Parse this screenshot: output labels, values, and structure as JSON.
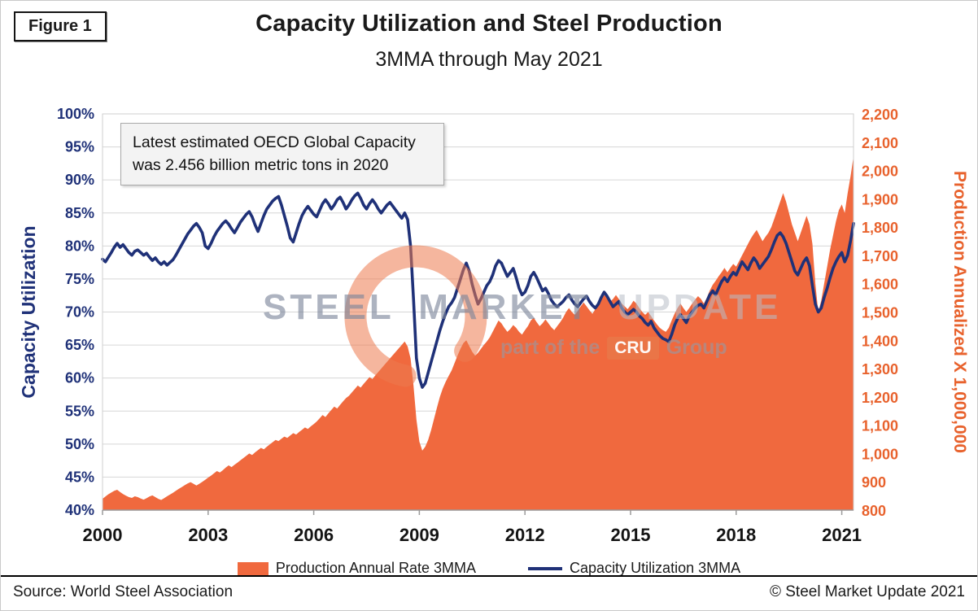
{
  "figure_label": "Figure 1",
  "header": {
    "title": "Capacity Utilization and Steel Production",
    "subtitle": "3MMA through May 2021"
  },
  "annotation": {
    "text": "Latest estimated OECD Global Capacity was 2.456 billion metric tons in 2020"
  },
  "watermark": {
    "brand_steel": "STEEL",
    "brand_market": "MARKET",
    "brand_update": "UPDATE",
    "tagline_prefix": "part of the",
    "tagline_cru": "CRU",
    "tagline_suffix": "Group"
  },
  "legend": [
    {
      "label": "Production Annual Rate 3MMA",
      "swatch": "area",
      "color": "#F0693E"
    },
    {
      "label": "Capacity Utilization 3MMA",
      "swatch": "line",
      "color": "#1F3178"
    }
  ],
  "footer": {
    "source": "Source: World Steel Association",
    "copyright": "© Steel Market Update 2021"
  },
  "chart_data": {
    "type": "area+line",
    "title": "Capacity Utilization and Steel Production",
    "subtitle": "3MMA through May 2021",
    "x_ticks": [
      "2000",
      "2003",
      "2006",
      "2009",
      "2012",
      "2015",
      "2018",
      "2021"
    ],
    "x_start_year": 2000,
    "points_per_year": 12,
    "left_axis": {
      "title": "Capacity Utilization",
      "min": 40,
      "max": 100,
      "step": 5,
      "tick_labels": [
        "100%",
        "95%",
        "90%",
        "85%",
        "80%",
        "75%",
        "70%",
        "65%",
        "60%",
        "55%",
        "50%",
        "45%",
        "40%"
      ],
      "color": "#1F3178"
    },
    "right_axis": {
      "title": "Production Annualized X 1,000,000",
      "min": 800,
      "max": 2200,
      "step": 100,
      "tick_labels": [
        "2,200",
        "2,100",
        "2,000",
        "1,900",
        "1,800",
        "1,700",
        "1,600",
        "1,500",
        "1,400",
        "1,300",
        "1,200",
        "1,100",
        "1,000",
        "900",
        "800"
      ],
      "color": "#E8622D"
    },
    "colors": {
      "navy": "#1F3178",
      "orange_area": "#F0693E",
      "orange_label": "#E8622D",
      "grid": "#D6D6D6",
      "axis_line": "#9b9b9b",
      "x_label": "#141414"
    },
    "series": [
      {
        "name": "Production Annual Rate 3MMA",
        "axis": "right",
        "type": "area",
        "color": "#F0693E",
        "values": [
          840,
          848,
          856,
          862,
          868,
          872,
          864,
          857,
          851,
          846,
          843,
          849,
          846,
          841,
          837,
          842,
          848,
          852,
          846,
          840,
          836,
          842,
          849,
          855,
          861,
          868,
          875,
          881,
          888,
          894,
          899,
          893,
          887,
          893,
          900,
          907,
          915,
          922,
          930,
          938,
          933,
          941,
          950,
          958,
          952,
          960,
          968,
          976,
          984,
          992,
          1000,
          995,
          1004,
          1012,
          1020,
          1015,
          1024,
          1032,
          1040,
          1048,
          1044,
          1052,
          1060,
          1055,
          1064,
          1072,
          1067,
          1076,
          1084,
          1092,
          1087,
          1096,
          1104,
          1113,
          1124,
          1136,
          1129,
          1142,
          1154,
          1166,
          1159,
          1172,
          1184,
          1196,
          1204,
          1216,
          1228,
          1240,
          1233,
          1246,
          1258,
          1270,
          1263,
          1276,
          1288,
          1300,
          1312,
          1324,
          1336,
          1348,
          1360,
          1372,
          1384,
          1396,
          1378,
          1336,
          1240,
          1120,
          1042,
          1010,
          1024,
          1048,
          1082,
          1122,
          1162,
          1200,
          1230,
          1254,
          1274,
          1294,
          1320,
          1346,
          1370,
          1390,
          1400,
          1380,
          1360,
          1346,
          1356,
          1370,
          1384,
          1396,
          1410,
          1430,
          1450,
          1470,
          1460,
          1444,
          1430,
          1440,
          1454,
          1444,
          1430,
          1420,
          1436,
          1450,
          1470,
          1480,
          1464,
          1450,
          1460,
          1474,
          1460,
          1446,
          1436,
          1450,
          1464,
          1480,
          1500,
          1514,
          1500,
          1490,
          1504,
          1520,
          1534,
          1520,
          1506,
          1494,
          1510,
          1526,
          1544,
          1560,
          1550,
          1536,
          1546,
          1560,
          1546,
          1530,
          1520,
          1510,
          1524,
          1540,
          1530,
          1514,
          1500,
          1490,
          1500,
          1486,
          1470,
          1456,
          1444,
          1436,
          1430,
          1444,
          1470,
          1494,
          1514,
          1530,
          1514,
          1500,
          1514,
          1530,
          1544,
          1556,
          1546,
          1530,
          1550,
          1576,
          1596,
          1610,
          1626,
          1640,
          1656,
          1640,
          1656,
          1670,
          1660,
          1680,
          1700,
          1720,
          1740,
          1760,
          1776,
          1790,
          1770,
          1750,
          1766,
          1780,
          1800,
          1830,
          1860,
          1890,
          1920,
          1890,
          1850,
          1810,
          1780,
          1750,
          1780,
          1810,
          1840,
          1810,
          1740,
          1600,
          1500,
          1540,
          1600,
          1660,
          1720,
          1770,
          1820,
          1860,
          1880,
          1850,
          1920,
          1980,
          2050
        ]
      },
      {
        "name": "Capacity Utilization 3MMA",
        "axis": "left",
        "type": "line",
        "color": "#1F3178",
        "values": [
          78.0,
          77.6,
          78.3,
          79.0,
          79.8,
          80.4,
          79.8,
          80.2,
          79.6,
          79.0,
          78.6,
          79.2,
          79.4,
          79.0,
          78.6,
          78.9,
          78.3,
          77.8,
          78.2,
          77.6,
          77.2,
          77.6,
          77.1,
          77.5,
          77.9,
          78.6,
          79.4,
          80.2,
          81.0,
          81.8,
          82.4,
          83.0,
          83.4,
          82.8,
          82.0,
          80.0,
          79.6,
          80.4,
          81.4,
          82.2,
          82.8,
          83.4,
          83.8,
          83.3,
          82.6,
          82.0,
          82.8,
          83.6,
          84.2,
          84.8,
          85.2,
          84.4,
          83.2,
          82.2,
          83.4,
          84.6,
          85.6,
          86.2,
          86.8,
          87.2,
          87.5,
          86.2,
          84.6,
          83.0,
          81.2,
          80.6,
          82.0,
          83.4,
          84.6,
          85.4,
          86.0,
          85.4,
          84.8,
          84.4,
          85.4,
          86.4,
          87.0,
          86.4,
          85.6,
          86.2,
          87.0,
          87.4,
          86.6,
          85.6,
          86.2,
          87.0,
          87.6,
          88.0,
          87.2,
          86.2,
          85.6,
          86.4,
          87.0,
          86.4,
          85.6,
          85.0,
          85.6,
          86.2,
          86.6,
          86.0,
          85.4,
          84.8,
          84.2,
          85.0,
          84.0,
          80.0,
          72.0,
          63.0,
          60.0,
          58.6,
          59.2,
          60.8,
          62.4,
          64.0,
          65.6,
          67.2,
          68.6,
          69.8,
          70.8,
          71.4,
          72.2,
          73.6,
          75.0,
          76.4,
          77.4,
          76.2,
          74.2,
          72.6,
          71.2,
          72.0,
          73.0,
          74.0,
          74.6,
          75.6,
          77.0,
          77.8,
          77.4,
          76.4,
          75.4,
          76.0,
          76.6,
          75.2,
          73.6,
          72.6,
          73.0,
          74.0,
          75.4,
          76.0,
          75.2,
          74.2,
          73.2,
          73.6,
          72.8,
          71.8,
          71.2,
          70.8,
          71.2,
          71.6,
          72.2,
          72.6,
          71.8,
          71.2,
          70.8,
          71.4,
          72.0,
          72.4,
          71.6,
          71.0,
          70.6,
          71.2,
          72.2,
          73.0,
          72.4,
          71.6,
          70.8,
          71.2,
          71.6,
          70.6,
          70.0,
          69.6,
          70.0,
          70.4,
          70.0,
          69.4,
          69.0,
          68.4,
          68.0,
          68.6,
          67.6,
          67.0,
          66.4,
          66.0,
          65.8,
          65.5,
          66.6,
          68.0,
          69.0,
          69.6,
          69.0,
          68.4,
          69.4,
          70.0,
          70.6,
          71.0,
          71.2,
          70.6,
          71.6,
          72.6,
          73.2,
          72.6,
          73.6,
          74.6,
          75.2,
          74.6,
          75.4,
          76.0,
          75.6,
          76.6,
          77.6,
          77.0,
          76.4,
          77.4,
          78.2,
          77.6,
          76.6,
          77.2,
          77.8,
          78.4,
          79.4,
          80.6,
          81.6,
          82.0,
          81.4,
          80.4,
          79.0,
          77.6,
          76.2,
          75.6,
          76.6,
          77.6,
          78.2,
          77.0,
          74.0,
          71.2,
          70.0,
          70.6,
          72.2,
          73.6,
          75.2,
          76.6,
          77.6,
          78.4,
          79.0,
          77.6,
          78.6,
          80.8,
          83.4
        ]
      }
    ]
  }
}
